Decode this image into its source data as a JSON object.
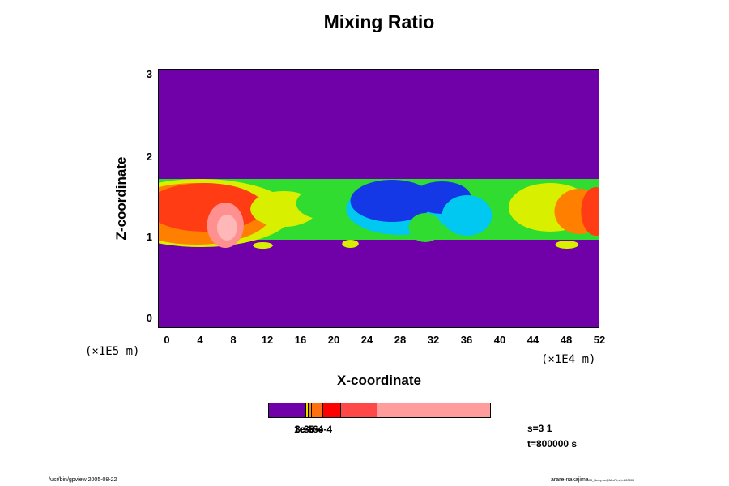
{
  "chart_data": {
    "type": "heatmap",
    "title": "Mixing Ratio",
    "xlabel": "X-coordinate",
    "ylabel": "Z-coordinate",
    "x_unit": "(×1E4 m)",
    "y_unit": "(×1E5 m)",
    "xlim": [
      -1,
      52
    ],
    "ylim": [
      -0.1,
      3.1
    ],
    "x_ticks": [
      "0",
      "4",
      "8",
      "12",
      "16",
      "20",
      "24",
      "28",
      "32",
      "36",
      "40",
      "44",
      "48",
      "52"
    ],
    "y_ticks": [
      "0",
      "1",
      "2",
      "3"
    ],
    "colors": {
      "background": "#7000a8",
      "blue": "#1438e6",
      "cyan": "#00c8f0",
      "green": "#30dc30",
      "yellow": "#d8f000",
      "orange": "#ff8000",
      "red": "#ff3c14",
      "pink": "#ff9090",
      "lightpink": "#ffb8b8"
    },
    "band": {
      "z_bottom": 1.0,
      "z_top": 1.75
    },
    "colorbar": {
      "segments": [
        {
          "color": "#7000a8",
          "fraction": 0.17
        },
        {
          "color": "#f0e000",
          "fraction": 0.01
        },
        {
          "color": "#ff8c00",
          "fraction": 0.015
        },
        {
          "color": "#ff7010",
          "fraction": 0.05
        },
        {
          "color": "#ff0000",
          "fraction": 0.08
        },
        {
          "color": "#ff4848",
          "fraction": 0.165
        },
        {
          "color": "#ff9c9c",
          "fraction": 0.51
        }
      ],
      "labels": [
        "1e-5",
        "3e-5",
        "3e-4",
        "6e-4"
      ]
    },
    "annotation_s": "s=3 1",
    "annotation_t": "t=800000 s"
  },
  "footer": {
    "left": "/usr/bin/gpview 2005-08-22",
    "right_main": "arare-nakajima",
    "right_small": "03_Berry.nc@MixRt,x,t=800000"
  }
}
